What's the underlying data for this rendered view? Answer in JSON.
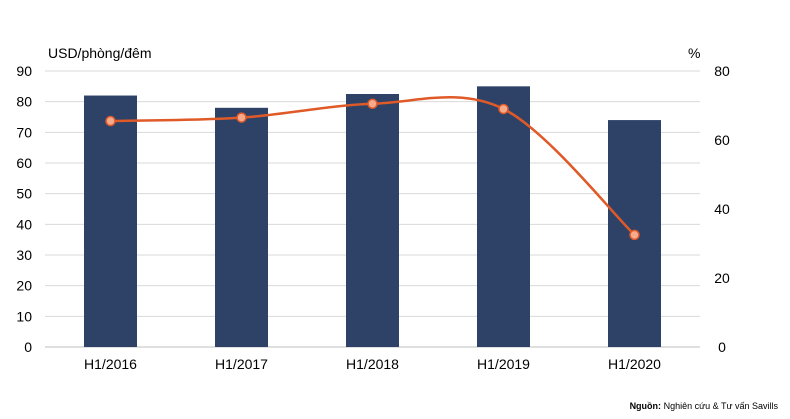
{
  "chart_data": {
    "type": "bar",
    "categories": [
      "H1/2016",
      "H1/2017",
      "H1/2018",
      "H1/2019",
      "H1/2020"
    ],
    "series": [
      {
        "type": "bar",
        "axis": "left",
        "values": [
          82,
          78,
          82.5,
          85,
          74
        ],
        "color": "#2e4268"
      },
      {
        "type": "line",
        "axis": "right",
        "values": [
          65.5,
          66.5,
          70.5,
          69,
          32.5
        ],
        "color": "#e05a28",
        "smooth": true
      }
    ],
    "y_left": {
      "label": "USD/phòng/đêm",
      "min": 0,
      "max": 90,
      "ticks": [
        0,
        10,
        20,
        30,
        40,
        50,
        60,
        70,
        80,
        90
      ]
    },
    "y_right": {
      "label": "%",
      "min": 0,
      "max": 80,
      "ticks": [
        0,
        20,
        40,
        60,
        80
      ]
    },
    "grid": true,
    "legend": "none"
  },
  "source": {
    "label": "Nguồn:",
    "text": " Nghiên cứu & Tư vấn Savills"
  }
}
